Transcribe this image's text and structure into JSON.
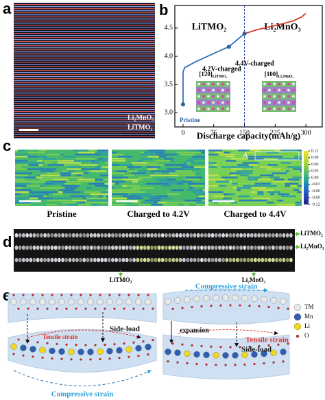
{
  "panel_labels": [
    "a",
    "b",
    "c",
    "d",
    "e"
  ],
  "panel_a": {
    "labels": [
      "Li₂MnO₃",
      "LiTMO₂"
    ]
  },
  "panel_b": {
    "type": "line",
    "xlabel": "Discharge capacity(mAh/g)",
    "xlim": [
      -20,
      340
    ],
    "ylim": [
      2.75,
      4.9
    ],
    "xticks": [
      0,
      75,
      150,
      225,
      300
    ],
    "yticks": [
      {
        "value": 3,
        "label": "3.0"
      },
      {
        "value": 3.5,
        "label": "3.5"
      },
      {
        "value": 4,
        "label": "4.0"
      },
      {
        "value": 4.5,
        "label": "4.5"
      }
    ],
    "regions": [
      "LiTMO₂",
      "Li₂MnO₃"
    ],
    "divider": 150,
    "series": [
      {
        "color": "#2e6fb7",
        "x": [
          0,
          0,
          4,
          30,
          60,
          90,
          112,
          130,
          150
        ],
        "values": [
          3.15,
          3.72,
          3.8,
          3.9,
          4.0,
          4.1,
          4.17,
          4.28,
          4.4
        ]
      },
      {
        "color": "#d43a2b",
        "x": [
          150,
          180,
          210,
          240,
          270,
          290,
          300
        ],
        "values": [
          4.4,
          4.47,
          4.52,
          4.57,
          4.63,
          4.7,
          4.76
        ]
      }
    ],
    "points": [
      {
        "label": "Pristine",
        "x": 0,
        "y": 3.15
      },
      {
        "label": "4.2V-charged",
        "x": 112,
        "y": 4.17
      },
      {
        "label": "4.4V-charged",
        "x": 150,
        "y": 4.4
      }
    ],
    "insets": [
      {
        "text": "[120]",
        "sub": "LiTMO₂"
      },
      {
        "text": "[100]",
        "sub": "Li₂MnO₃"
      }
    ]
  },
  "panel_c": {
    "maps": [
      "Pristine",
      "Charged to 4.2V",
      "Charged to 4.4V"
    ],
    "region": "A",
    "colorbar": {
      "lim": [
        -0.12,
        0.12
      ],
      "ticks": [
        0.12,
        0.09,
        0.06,
        0.03,
        {
          "value": 0,
          "label": "0.00"
        },
        -0.03,
        -0.06,
        -0.09,
        -0.12
      ]
    }
  },
  "panel_d": {
    "right_labels": [
      "LiTMO₂",
      "Li₂MnO₃"
    ],
    "bottom_labels": [
      "LiTMO₂",
      "Li₂MnO₃"
    ]
  },
  "panel_e": {
    "left": {
      "tensile": "Tensile strain",
      "side_load": "Side-load",
      "compressive": "Compressive strain"
    },
    "right": {
      "compressive": "Compressive strain",
      "expansion": "expansion",
      "tensile": "Tensile strain",
      "side_load": "Side-load"
    },
    "legend": [
      "TM",
      "Mn",
      "Li",
      "O"
    ]
  }
}
